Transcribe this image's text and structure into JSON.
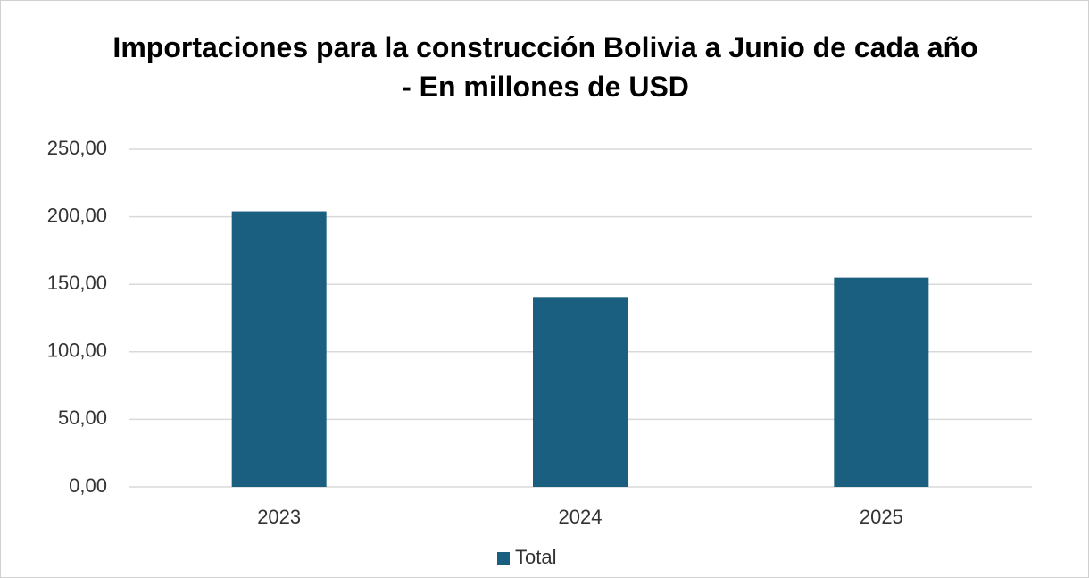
{
  "chart_data": {
    "type": "bar",
    "title": "Importaciones para la construcción Bolivia a Junio de cada año - En millones de USD",
    "categories": [
      "2023",
      "2024",
      "2025"
    ],
    "series": [
      {
        "name": "Total",
        "color": "#1a5e80",
        "values": [
          204,
          140,
          155
        ]
      }
    ],
    "ylim": [
      0,
      250
    ],
    "yticks": [
      {
        "value": 0,
        "label": "0,00"
      },
      {
        "value": 50,
        "label": "50,00"
      },
      {
        "value": 100,
        "label": "100,00"
      },
      {
        "value": 150,
        "label": "150,00"
      },
      {
        "value": 200,
        "label": "200,00"
      },
      {
        "value": 250,
        "label": "250,00"
      }
    ],
    "grid": true,
    "legend": "bottom"
  }
}
